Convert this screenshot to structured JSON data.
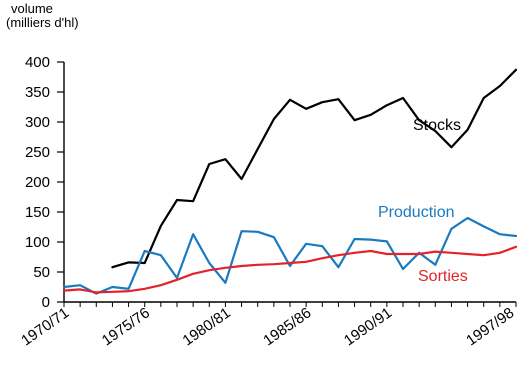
{
  "chart_data": {
    "type": "line",
    "ylabel_line1": "volume",
    "ylabel_line2": "(milliers d'hl)",
    "ylim": [
      0,
      400
    ],
    "yticks": [
      0,
      50,
      100,
      150,
      200,
      250,
      300,
      350,
      400
    ],
    "x_labels": [
      "1970/71",
      "1975/76",
      "1980/81",
      "1985/86",
      "1990/91",
      "1997/98"
    ],
    "x_label_index": [
      0,
      5,
      10,
      15,
      20,
      27
    ],
    "grid": false,
    "series": [
      {
        "name": "Stocks",
        "color": "#000000",
        "values": [
          null,
          null,
          null,
          58,
          66,
          65,
          127,
          170,
          168,
          230,
          238,
          205,
          255,
          305,
          337,
          322,
          333,
          338,
          303,
          312,
          328,
          340,
          303,
          285,
          258,
          287,
          340,
          360,
          387
        ]
      },
      {
        "name": "Production",
        "color": "#1a7ac0",
        "values": [
          25,
          28,
          14,
          25,
          22,
          85,
          78,
          40,
          113,
          65,
          32,
          118,
          117,
          108,
          60,
          97,
          93,
          58,
          105,
          104,
          101,
          55,
          82,
          62,
          122,
          140,
          126,
          113,
          110
        ]
      },
      {
        "name": "Sorties",
        "color": "#e3232b",
        "values": [
          19,
          21,
          16,
          17,
          18,
          22,
          28,
          37,
          47,
          53,
          57,
          60,
          62,
          63,
          65,
          67,
          73,
          78,
          82,
          85,
          80,
          80,
          80,
          84,
          82,
          80,
          78,
          82,
          92
        ]
      }
    ]
  }
}
